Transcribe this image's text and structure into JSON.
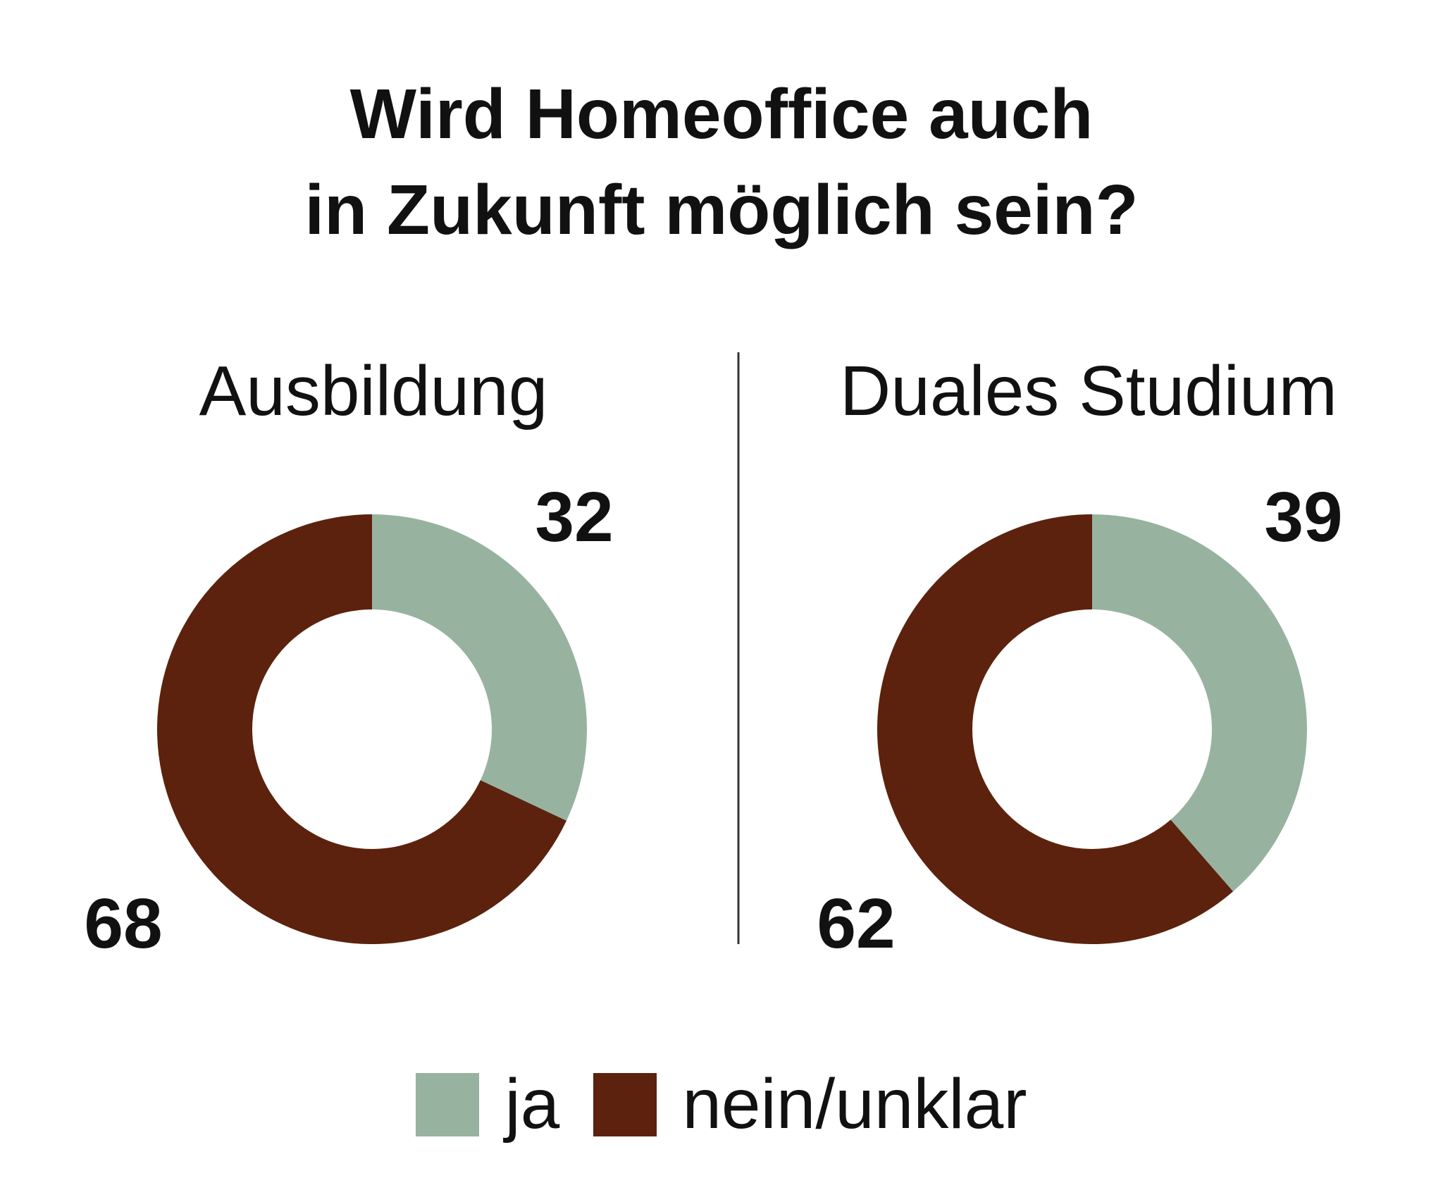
{
  "title_line1": "Wird Homeoffice auch",
  "title_line2": "in Zukunft möglich sein?",
  "colors": {
    "ja": "#97b3a0",
    "nein": "#5c220d"
  },
  "legend": {
    "ja": "ja",
    "nein": "nein/unklar"
  },
  "chart_data": [
    {
      "type": "pie",
      "title": "Ausbildung",
      "categories": [
        "ja",
        "nein/unklar"
      ],
      "values": [
        32,
        68
      ]
    },
    {
      "type": "pie",
      "title": "Duales Studium",
      "categories": [
        "ja",
        "nein/unklar"
      ],
      "values": [
        39,
        62
      ]
    }
  ]
}
